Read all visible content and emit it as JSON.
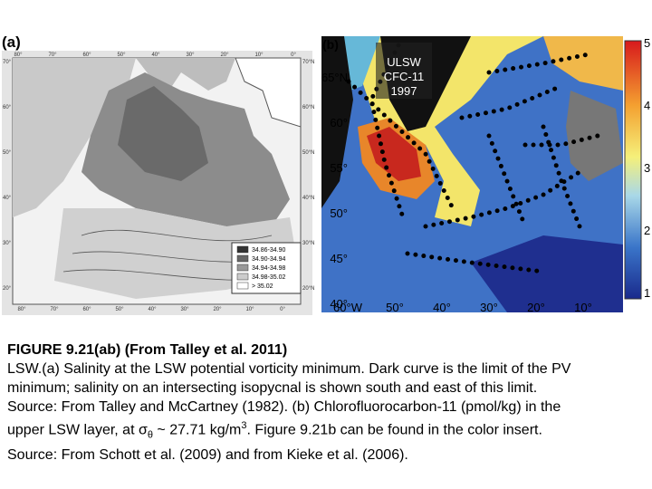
{
  "panel_a": {
    "label": "(a)",
    "top_ticks": [
      "80°",
      "70°",
      "60°",
      "50°",
      "40°",
      "30°",
      "20°",
      "10°",
      "0°"
    ],
    "left_ticks": [
      "70°",
      "60°",
      "50°",
      "40°",
      "30°",
      "20°"
    ],
    "right_ticks": [
      "70°N",
      "60°N",
      "50°N",
      "40°N",
      "30°N",
      "20°N"
    ],
    "bottom_ticks": [
      "80°",
      "70°",
      "60°",
      "50°",
      "40°",
      "30°",
      "20°",
      "10°",
      "0°"
    ],
    "legend": [
      "34.86-34.90",
      "34.90-34.94",
      "34.94-34.98",
      "34.98-35.02",
      "> 35.02"
    ]
  },
  "panel_b": {
    "label": "(b)",
    "inset": [
      "ULSW",
      "CFC-11",
      "1997"
    ],
    "lat_ticks": [
      "65°N",
      "60°",
      "55°",
      "50°",
      "45°",
      "40°"
    ],
    "lon_ticks": [
      "60°W",
      "50°",
      "40°",
      "30°",
      "20°",
      "10°"
    ],
    "colorbar_ticks": [
      5,
      4,
      3,
      2,
      1
    ]
  },
  "caption": {
    "title": "FIGURE 9.21(ab) (From Talley et al. 2011)",
    "lines": [
      "LSW.(a) Salinity at the LSW potential vorticity minimum. Dark curve is the limit of the PV",
      "minimum; salinity on an intersecting isopycnal is shown south and east of this limit.",
      "Source: From Talley and McCartney (1982). (b) Chlorofluorocarbon-11 (pmol/kg) in the"
    ],
    "line4": [
      "upper LSW layer, at σ",
      "θ",
      " ~ 27.71 kg/m",
      "3",
      ". Figure 9.21b can be found in the color insert."
    ],
    "line5": "Source: From Schott et al. (2009) and from Kieke et al. (2006)."
  }
}
